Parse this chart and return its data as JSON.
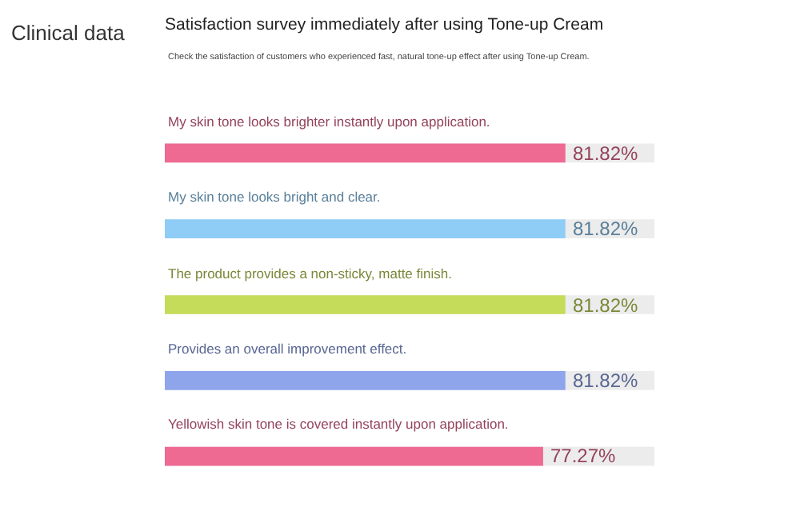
{
  "chart_data": {
    "type": "bar",
    "orientation": "horizontal",
    "title": "Satisfaction survey immediately after using Tone-up Cream",
    "subtitle": "Check the satisfaction of customers who experienced fast, natural tone-up effect after using Tone-up Cream.",
    "annotations": [
      "Clinical data"
    ],
    "categories": [
      "My skin tone looks brighter instantly upon application.",
      "My skin tone looks bright and clear.",
      "The product provides a non-sticky, matte finish.",
      "Provides an overall improvement effect.",
      "Yellowish skin tone is covered instantly upon application."
    ],
    "values": [
      81.82,
      81.82,
      81.82,
      81.82,
      77.27
    ],
    "colors": [
      "#ee6a93",
      "#8fcdf7",
      "#c5dc5a",
      "#8ea5ec",
      "#ee6a93"
    ],
    "value_labels": [
      "81.82%",
      "81.82%",
      "81.82%",
      "81.82%",
      "77.27%"
    ],
    "xlim": [
      0,
      100
    ],
    "tick_labels": false
  }
}
